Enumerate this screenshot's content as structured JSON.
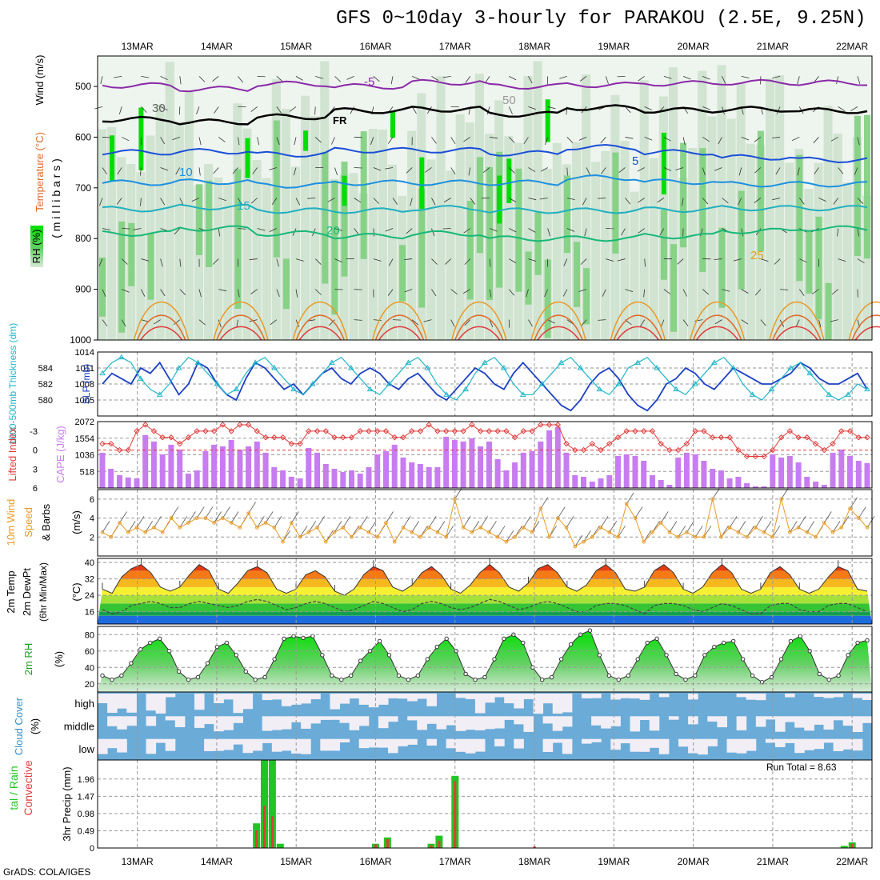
{
  "title": "GFS 0~10day 3-hourly for PARAKOU (2.5E, 9.25N)",
  "credit": "GrADS: COLA/IGES",
  "run_total_label": "Run Total = 8.63",
  "dates": [
    "13MAR",
    "14MAR",
    "15MAR",
    "16MAR",
    "17MAR",
    "18MAR",
    "19MAR",
    "20MAR",
    "21MAR",
    "22MAR"
  ],
  "colors": {
    "rh_green": "#00dd00",
    "rh_mid": "#7fcf7f",
    "rh_light": "#c9dec9",
    "freezing": "#000000",
    "slp": "#1a3fc4",
    "thickness": "#1fb5c9",
    "lifted_index": "#e23a3a",
    "cape": "#c77cf0",
    "wind10": "#e89a25",
    "cloud": "#6aabd8",
    "rain_total": "#22c422",
    "rain_conv": "#e23a3a"
  },
  "chart_data": [
    {
      "type": "heatmap",
      "panel": "upper-air",
      "y_axis_title": "( m i l l i b a r s )",
      "side_labels": [
        "Wind (m/s)",
        "Temperature (°C)",
        "RH (%)"
      ],
      "pressure_ticks": [
        500,
        600,
        700,
        800,
        900,
        1000
      ],
      "ylim": [
        1000,
        440
      ],
      "contour_labels": [
        "-5",
        "FR",
        "5",
        "10",
        "15",
        "20",
        "25",
        "30",
        "50"
      ],
      "isotherms": [
        {
          "label": "-5",
          "levels": [
            498,
            505,
            495,
            500,
            492,
            500,
            497,
            494,
            492,
            493
          ]
        },
        {
          "label": "FR",
          "levels": [
            565,
            570,
            560,
            548,
            545,
            555,
            542,
            547,
            545,
            548
          ]
        },
        {
          "label": "5",
          "levels": [
            630,
            628,
            634,
            626,
            626,
            632,
            620,
            630,
            640,
            645
          ]
        },
        {
          "label": "10",
          "levels": [
            690,
            688,
            695,
            690,
            690,
            690,
            680,
            688,
            693,
            693
          ]
        },
        {
          "label": "15",
          "levels": [
            742,
            738,
            745,
            745,
            740,
            745,
            745,
            743,
            740,
            740
          ]
        },
        {
          "label": "20",
          "levels": [
            790,
            780,
            790,
            795,
            790,
            800,
            800,
            795,
            785,
            780
          ]
        }
      ]
    },
    {
      "type": "line",
      "panel": "slp-thickness",
      "left_label": "1000-500mb Thickness (dm)",
      "right_label": "SLP (mb)",
      "thickness_ticks": [
        580,
        582,
        584
      ],
      "slp_ticks": [
        1005,
        1008,
        1011,
        1014
      ],
      "series": [
        {
          "values": [
            1008,
            1010,
            1009,
            1008,
            1011,
            1010,
            1012,
            1009,
            1006,
            1008,
            1012,
            1011,
            1008,
            1006,
            1005,
            1009,
            1012,
            1011,
            1009,
            1007,
            1008,
            1006,
            1008,
            1010,
            1011,
            1009,
            1008,
            1010,
            1011,
            1010,
            1008,
            1007,
            1009,
            1010,
            1008,
            1006,
            1005,
            1007,
            1009,
            1011,
            1010,
            1008,
            1007,
            1010,
            1012,
            1010,
            1008,
            1006,
            1004,
            1003,
            1005,
            1008,
            1010,
            1011,
            1009,
            1006,
            1004,
            1003,
            1005,
            1008,
            1009,
            1011,
            1010,
            1008,
            1007,
            1009,
            1011,
            1010,
            1009,
            1008,
            1008,
            1009,
            1010,
            1012,
            1011,
            1009,
            1008,
            1008,
            1009,
            1010,
            1007
          ]
        },
        {
          "values": [
            1010,
            1012,
            1013,
            1012,
            1009,
            1007,
            1006,
            1008,
            1011,
            1013,
            1012,
            1010,
            1008,
            1006,
            1007,
            1010,
            1012,
            1013,
            1011,
            1009,
            1007,
            1006,
            1008,
            1010,
            1012,
            1013,
            1011,
            1009,
            1007,
            1006,
            1008,
            1010,
            1012,
            1013,
            1011,
            1008,
            1006,
            1005,
            1007,
            1010,
            1012,
            1013,
            1011,
            1008,
            1006,
            1006,
            1008,
            1010,
            1012,
            1013,
            1011,
            1009,
            1007,
            1006,
            1008,
            1011,
            1012,
            1013,
            1011,
            1009,
            1007,
            1006,
            1008,
            1010,
            1012,
            1013,
            1011,
            1008,
            1006,
            1005,
            1007,
            1009,
            1011,
            1012,
            1010,
            1008,
            1006,
            1005,
            1006,
            1008,
            1007
          ]
        }
      ]
    },
    {
      "type": "bar",
      "panel": "lifted-cape",
      "left_label": "Lifted Index",
      "right_label": "CAPE (J/kg)",
      "li_ticks": [
        "-3",
        "0",
        "3",
        "6"
      ],
      "cape_ticks": [
        518,
        1036,
        1554,
        2072
      ],
      "series": [
        {
          "values": [
            1100,
            600,
            400,
            330,
            300,
            1650,
            1450,
            1050,
            1350,
            1200,
            450,
            550,
            1150,
            1350,
            1300,
            1500,
            1200,
            1300,
            1450,
            1100,
            650,
            550,
            350,
            300,
            1250,
            1100,
            750,
            600,
            500,
            550,
            450,
            650,
            1050,
            1150,
            1350,
            950,
            800,
            750,
            650,
            650,
            1600,
            1500,
            1450,
            1550,
            1300,
            1450,
            900,
            550,
            800,
            1100,
            1150,
            1450,
            1800,
            1900,
            1100,
            400,
            350,
            200,
            300,
            400,
            1000,
            1050,
            1000,
            850,
            400,
            250,
            100,
            950,
            1100,
            1050,
            850,
            600,
            550,
            300,
            350,
            150,
            50,
            50,
            1050,
            950,
            1000,
            800,
            350,
            200,
            100,
            1100,
            1200,
            1000,
            850,
            780
          ]
        },
        {
          "values": [
            -1,
            -1,
            0,
            0,
            -3,
            -4,
            -3,
            -2,
            -2,
            -1,
            -2,
            -3,
            -3,
            -3,
            -4,
            -3,
            -4,
            -4,
            -3,
            -2,
            -2,
            -2,
            -1,
            -1,
            -3,
            -3,
            -3,
            -2,
            -2,
            -2,
            -3,
            -3,
            -3,
            -3,
            -2,
            -2,
            -3,
            -3,
            -4,
            -3,
            -3,
            -3,
            -3,
            -4,
            -3,
            -3,
            -3,
            -3,
            -2,
            -3,
            -3,
            -4,
            -4,
            -4,
            -1,
            0,
            0,
            -1,
            0,
            -1,
            -2,
            -3,
            -3,
            -3,
            -3,
            -1,
            0,
            0,
            -1,
            -3,
            -3,
            -2,
            -2,
            -2,
            0,
            1,
            1,
            1,
            0,
            -2,
            -3,
            -2,
            -2,
            -1,
            0,
            -1,
            -3,
            -3,
            -2,
            -2
          ]
        }
      ]
    },
    {
      "type": "line",
      "panel": "wind10m",
      "left_label": "10m Wind Speed & Barbs",
      "unit_label": "(m/s)",
      "yticks": [
        2,
        4,
        6
      ],
      "ylim": [
        0,
        7
      ],
      "series": [
        {
          "values": [
            2.5,
            2,
            3.5,
            2.5,
            3,
            2.5,
            3,
            2.5,
            4,
            3,
            3.5,
            4,
            4,
            3.5,
            4,
            3.5,
            3,
            4.5,
            3,
            3.5,
            3,
            1.5,
            3.5,
            2,
            2.5,
            3,
            1.5,
            2.5,
            3,
            2,
            3,
            2.5,
            2,
            3.5,
            1.5,
            3,
            2.5,
            2,
            3,
            2.5,
            2,
            6,
            3,
            2.5,
            3,
            2.5,
            2,
            1.5,
            2,
            3,
            2.5,
            5,
            2,
            4,
            3,
            1,
            1.5,
            2,
            3,
            2.5,
            2,
            5.5,
            4,
            1.5,
            2.5,
            3.5,
            2.5,
            2,
            2.5,
            2,
            2,
            6,
            2,
            3,
            2.5,
            2,
            3,
            2.5,
            2,
            6,
            2.5,
            3,
            2.5,
            2,
            3.5,
            2.5,
            3,
            5,
            4,
            3
          ]
        }
      ]
    },
    {
      "type": "area",
      "panel": "temp2m",
      "left_label": "2m Temp 2m DewPt (6hr Min/Max)",
      "unit_label": "(°C)",
      "yticks": [
        16,
        24,
        32,
        40
      ],
      "ylim": [
        10,
        42
      ],
      "series": [
        {
          "values": [
            27,
            25,
            33,
            37,
            39,
            35,
            28,
            26,
            28,
            34,
            39,
            36,
            27,
            25,
            30,
            36,
            38,
            35,
            27,
            25,
            27,
            34,
            36,
            33,
            26,
            24,
            27,
            34,
            38,
            36,
            28,
            26,
            29,
            35,
            38,
            34,
            27,
            25,
            29,
            35,
            39,
            35,
            28,
            26,
            30,
            37,
            39,
            35,
            28,
            26,
            29,
            36,
            39,
            35,
            27,
            26,
            28,
            36,
            39,
            35,
            27,
            25,
            28,
            35,
            39,
            35,
            27,
            25,
            27,
            35,
            38,
            34,
            27,
            25,
            27,
            33,
            38,
            36,
            27,
            26
          ]
        },
        {
          "values": [
            17,
            15,
            16,
            19,
            20,
            21,
            20,
            18,
            18,
            20,
            21,
            20,
            19,
            18,
            19,
            21,
            22,
            21,
            19,
            17,
            18,
            20,
            21,
            20,
            18,
            16,
            17,
            19,
            21,
            20,
            18,
            16,
            17,
            20,
            21,
            20,
            18,
            17,
            18,
            20,
            22,
            21,
            19,
            17,
            18,
            20,
            21,
            20,
            18,
            16,
            16,
            19,
            20,
            20,
            19,
            17,
            15,
            19,
            20,
            20,
            19,
            17,
            16,
            18,
            20,
            19,
            17,
            15,
            15,
            19,
            20,
            20,
            17,
            16,
            16,
            19,
            20,
            20,
            18,
            16
          ]
        }
      ]
    },
    {
      "type": "area",
      "panel": "rh2m",
      "left_label": "2m RH",
      "unit_label": "(%)",
      "yticks": [
        20,
        40,
        60,
        80
      ],
      "ylim": [
        10,
        90
      ],
      "series": [
        {
          "values": [
            30,
            25,
            30,
            45,
            62,
            70,
            75,
            60,
            35,
            25,
            28,
            45,
            65,
            70,
            55,
            35,
            25,
            28,
            50,
            75,
            78,
            76,
            78,
            55,
            30,
            25,
            30,
            48,
            60,
            72,
            55,
            30,
            25,
            30,
            50,
            65,
            75,
            60,
            32,
            25,
            28,
            50,
            75,
            80,
            70,
            40,
            25,
            28,
            50,
            68,
            80,
            85,
            55,
            30,
            25,
            30,
            50,
            70,
            75,
            55,
            32,
            25,
            30,
            55,
            65,
            70,
            72,
            50,
            30,
            22,
            28,
            50,
            72,
            78,
            60,
            32,
            25,
            30,
            55,
            70,
            73
          ]
        }
      ]
    },
    {
      "type": "table",
      "panel": "cloud-cover",
      "left_label": "Cloud Cover",
      "unit_label": "(%)",
      "rows": [
        "high",
        "middle",
        "low"
      ]
    },
    {
      "type": "bar",
      "panel": "precip",
      "left_label": "Total / Rain Convective",
      "unit_label": "3hr Precip (mm)",
      "yticks": [
        0.49,
        0.98,
        1.47,
        1.96
      ],
      "ylim": [
        0,
        2.5
      ],
      "series": [
        {
          "values": [
            [
              14.5,
              0.7
            ],
            [
              14.6,
              2.5
            ],
            [
              14.7,
              2.5
            ],
            [
              14.8,
              0.12
            ],
            [
              16.0,
              0.12
            ],
            [
              16.15,
              0.3
            ],
            [
              16.7,
              0.12
            ],
            [
              16.8,
              0.35
            ],
            [
              17.0,
              2.05
            ],
            [
              21.9,
              0.06
            ],
            [
              22.0,
              0.16
            ]
          ]
        },
        {
          "values": [
            [
              14.5,
              0.5
            ],
            [
              14.6,
              1.2
            ],
            [
              14.7,
              0.9
            ],
            [
              16.0,
              0.1
            ],
            [
              16.15,
              0.25
            ],
            [
              16.7,
              0.08
            ],
            [
              16.8,
              0.2
            ],
            [
              17.0,
              1.9
            ],
            [
              18.0,
              0.05
            ],
            [
              22.0,
              0.12
            ]
          ]
        }
      ]
    }
  ]
}
